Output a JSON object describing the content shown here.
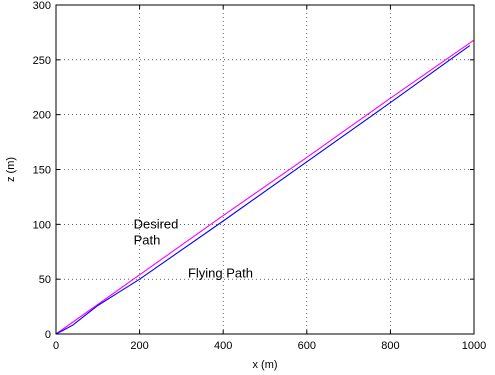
{
  "chart_data": {
    "type": "line",
    "title": "",
    "xlabel": "x (m)",
    "ylabel": "z (m)",
    "xlim": [
      0,
      1000
    ],
    "ylim": [
      0,
      300
    ],
    "xticks": [
      0,
      200,
      400,
      600,
      800,
      1000
    ],
    "yticks": [
      0,
      50,
      100,
      150,
      200,
      250,
      300
    ],
    "grid": true,
    "grid_style": "dotted",
    "series": [
      {
        "color": "#ff00ff",
        "x": [
          0,
          200,
          400,
          600,
          800,
          1000
        ],
        "y": [
          0,
          54,
          108,
          161,
          215,
          268
        ]
      },
      {
        "color": "#0000ff",
        "x": [
          0,
          20,
          40,
          60,
          80,
          100,
          150,
          200,
          400,
          600,
          800,
          990
        ],
        "y": [
          0,
          4,
          8,
          14,
          20,
          26,
          38,
          50,
          103,
          157,
          211,
          263
        ]
      }
    ],
    "annotations": [
      {
        "lines": [
          "Desired",
          "Path"
        ],
        "at": [
          200,
          100
        ]
      },
      {
        "lines": [
          "Flying Path"
        ],
        "at": [
          330,
          55
        ]
      }
    ]
  }
}
